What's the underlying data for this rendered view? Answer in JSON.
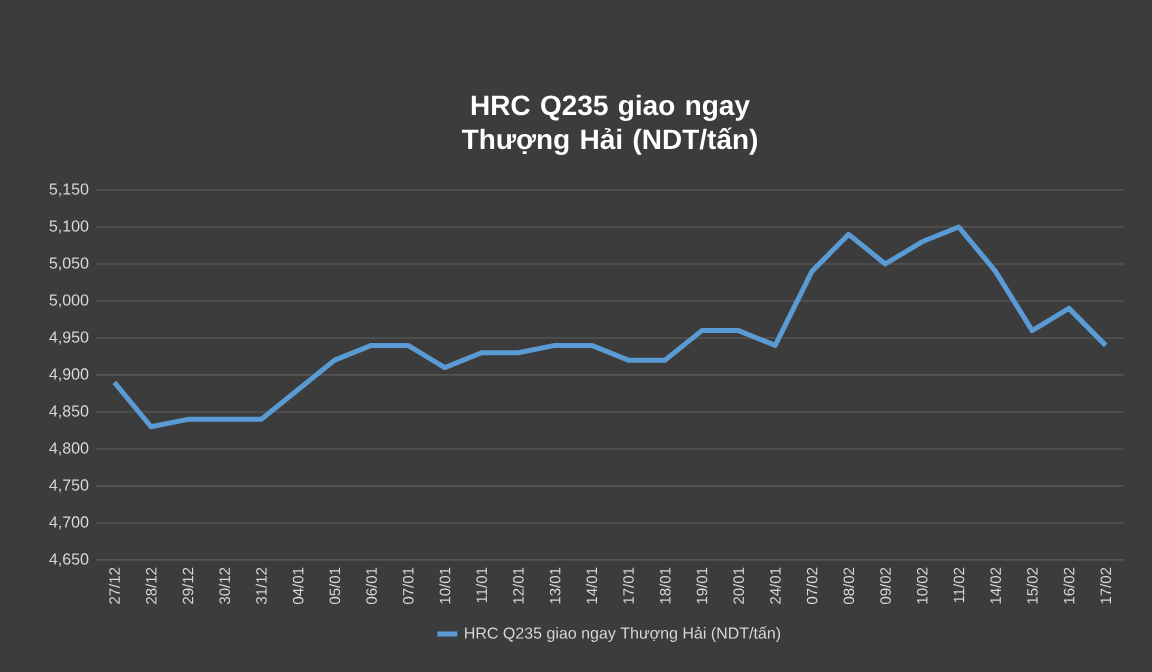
{
  "chart_data": {
    "type": "line",
    "title": "HRC Q235 giao ngay Thượng Hải (NDT/tấn)",
    "categories": [
      "27/12",
      "28/12",
      "29/12",
      "30/12",
      "31/12",
      "04/01",
      "05/01",
      "06/01",
      "07/01",
      "10/01",
      "11/01",
      "12/01",
      "13/01",
      "14/01",
      "17/01",
      "18/01",
      "19/01",
      "20/01",
      "24/01",
      "07/02",
      "08/02",
      "09/02",
      "10/02",
      "11/02",
      "14/02",
      "15/02",
      "16/02",
      "17/02"
    ],
    "series": [
      {
        "name": "HRC Q235 giao ngay Thượng Hải (NDT/tấn)",
        "color": "#5b9bd5",
        "values": [
          4890,
          4830,
          4840,
          4840,
          4840,
          4880,
          4920,
          4940,
          4940,
          4910,
          4930,
          4930,
          4940,
          4940,
          4920,
          4920,
          4960,
          4960,
          4940,
          5040,
          5090,
          5050,
          5080,
          5100,
          5040,
          4960,
          4990,
          4940
        ]
      }
    ],
    "ylim": [
      4650,
      5150
    ],
    "yticks": [
      {
        "value": 4650,
        "label": "4,650"
      },
      {
        "value": 4700,
        "label": "4,700"
      },
      {
        "value": 4750,
        "label": "4,750"
      },
      {
        "value": 4800,
        "label": "4,800"
      },
      {
        "value": 4850,
        "label": "4,850"
      },
      {
        "value": 4900,
        "label": "4,900"
      },
      {
        "value": 4950,
        "label": "4,950"
      },
      {
        "value": 5000,
        "label": "5,000"
      },
      {
        "value": 5050,
        "label": "5,050"
      },
      {
        "value": 5100,
        "label": "5,100"
      },
      {
        "value": 5150,
        "label": "5,150"
      }
    ],
    "grid": "y",
    "legend": "bottom",
    "marker": "none",
    "line_style": "solid"
  }
}
